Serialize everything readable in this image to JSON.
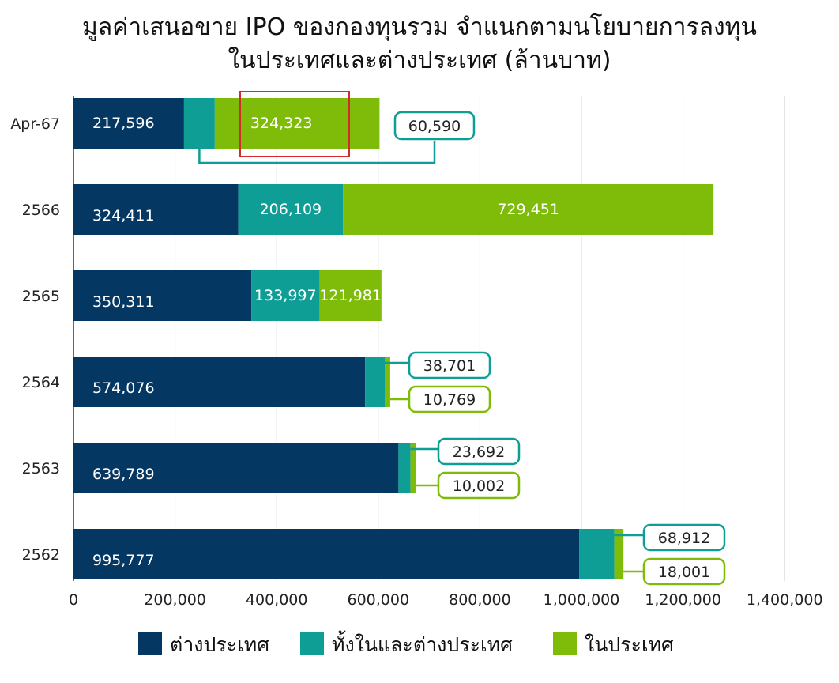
{
  "title_line1": "มูลค่าเสนอขาย IPO ของกองทุนรวม จำแนกตามนโยบายการลงทุน",
  "title_line2": "ในประเทศและต่างประเทศ (ล้านบาท)",
  "colors": {
    "foreign": "#053763",
    "both": "#0f9e95",
    "domestic": "#7fbc0a",
    "highlight": "#d42a2a",
    "grid": "#d9d9d9"
  },
  "chart_data": {
    "type": "bar",
    "orientation": "horizontal",
    "stacked": true,
    "categories": [
      "Apr-67",
      "2566",
      "2565",
      "2564",
      "2563",
      "2562"
    ],
    "series": [
      {
        "name": "ต่างประเทศ",
        "values": [
          217596,
          324411,
          350311,
          574076,
          639789,
          995777
        ]
      },
      {
        "name": "ทั้งในและต่างประเทศ",
        "values": [
          60590,
          206109,
          133997,
          38701,
          23692,
          68912
        ]
      },
      {
        "name": "ในประเทศ",
        "values": [
          324323,
          729451,
          121981,
          10769,
          10002,
          18001
        ]
      }
    ],
    "data_labels": [
      [
        "217,596",
        "60,590",
        "324,323"
      ],
      [
        "324,411",
        "206,109",
        "729,451"
      ],
      [
        "350,311",
        "133,997",
        "121,981"
      ],
      [
        "574,076",
        "38,701",
        "10,769"
      ],
      [
        "639,789",
        "23,692",
        "10,002"
      ],
      [
        "995,777",
        "68,912",
        "18,001"
      ]
    ],
    "xlim": [
      0,
      1400000
    ],
    "xticks": [
      "0",
      "200,000",
      "400,000",
      "600,000",
      "800,000",
      "1,000,000",
      "1,200,000",
      "1,400,000"
    ],
    "grid": true,
    "legend_position": "bottom",
    "highlighted_value": "324,323"
  }
}
